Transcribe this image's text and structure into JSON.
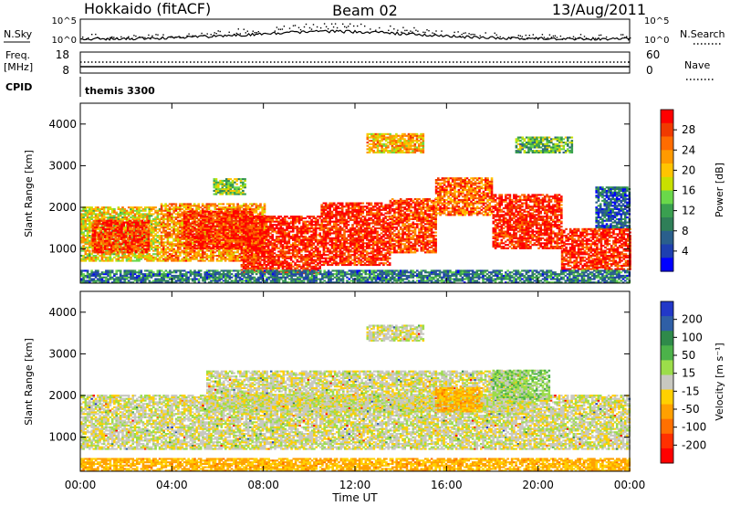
{
  "header": {
    "title_left": "Hokkaido (fitACF)",
    "title_center": "Beam 02",
    "title_right": "13/Aug/2011"
  },
  "top_panels": {
    "nsky_label": "N.Sky",
    "nsearch_label": "N.Search",
    "nsky_ticks": [
      "10^5",
      "10^0"
    ],
    "nsearch_ticks": [
      "10^5",
      "10^0"
    ],
    "freq_label_1": "Freq.",
    "freq_label_2": "[MHz]",
    "freq_ticks": [
      "18",
      "8"
    ],
    "nave_label": "Nave",
    "nave_ticks": [
      "60",
      "0"
    ],
    "cpid_label": "CPID",
    "cpid_value": "themis 3300"
  },
  "power_colorbar": {
    "title": "Power [dB]",
    "ticks": [
      "28",
      "24",
      "20",
      "16",
      "12",
      "8",
      "4"
    ],
    "colors": [
      "#ff0000",
      "#f03a00",
      "#ff6c00",
      "#ff9a00",
      "#ffc400",
      "#c8e000",
      "#6ad84a",
      "#3aa050",
      "#2f7f58",
      "#2a5f8c",
      "#1e3fb0",
      "#0000ff"
    ]
  },
  "velocity_colorbar": {
    "title": "Velocity [m s⁻¹]",
    "ticks": [
      "200",
      "100",
      "50",
      "15",
      "-15",
      "-50",
      "-100",
      "-200"
    ],
    "colors": [
      "#2238c8",
      "#2f5fa6",
      "#2f8a4a",
      "#4cb24a",
      "#9cdd4a",
      "#c8c8c0",
      "#ffd000",
      "#ffa000",
      "#ff7000",
      "#ff3000",
      "#ff0000"
    ]
  },
  "axes": {
    "y_label": "Slant Range [km]",
    "y_ticks": [
      "4000",
      "3000",
      "2000",
      "1000"
    ],
    "x_label": "Time UT",
    "x_ticks": [
      "00:00",
      "04:00",
      "08:00",
      "12:00",
      "16:00",
      "20:00",
      "00:00"
    ]
  },
  "chart_data": {
    "type": "heatmap",
    "x_range_hours": [
      0,
      24
    ],
    "y_range_km": [
      180,
      4500
    ],
    "panels": [
      {
        "name": "Power",
        "units": "dB",
        "color_range": [
          0,
          30
        ],
        "regions": [
          {
            "t0": 0.0,
            "t1": 3.5,
            "r0": 700,
            "r1": 2000,
            "level": 18
          },
          {
            "t0": 0.5,
            "t1": 3.0,
            "r0": 900,
            "r1": 1700,
            "level": 27
          },
          {
            "t0": 3.5,
            "t1": 8.0,
            "r0": 700,
            "r1": 2100,
            "level": 22
          },
          {
            "t0": 4.5,
            "t1": 7.5,
            "r0": 1000,
            "r1": 1900,
            "level": 28
          },
          {
            "t0": 7.0,
            "t1": 10.5,
            "r0": 400,
            "r1": 1800,
            "level": 28
          },
          {
            "t0": 10.5,
            "t1": 13.5,
            "r0": 600,
            "r1": 2100,
            "level": 28
          },
          {
            "t0": 13.5,
            "t1": 15.5,
            "r0": 900,
            "r1": 2200,
            "level": 26
          },
          {
            "t0": 15.5,
            "t1": 18.0,
            "r0": 1800,
            "r1": 2700,
            "level": 24
          },
          {
            "t0": 18.0,
            "t1": 21.0,
            "r0": 1000,
            "r1": 2300,
            "level": 28
          },
          {
            "t0": 21.0,
            "t1": 24.0,
            "r0": 500,
            "r1": 1500,
            "level": 28
          },
          {
            "t0": 12.5,
            "t1": 15.0,
            "r0": 3300,
            "r1": 3750,
            "level": 20
          },
          {
            "t0": 5.8,
            "t1": 7.2,
            "r0": 2300,
            "r1": 2700,
            "level": 14
          },
          {
            "t0": 19.0,
            "t1": 21.5,
            "r0": 3300,
            "r1": 3700,
            "level": 12
          },
          {
            "t0": 0.0,
            "t1": 24.0,
            "r0": 180,
            "r1": 500,
            "level": 8
          },
          {
            "t0": 22.5,
            "t1": 24.0,
            "r0": 1500,
            "r1": 2500,
            "level": 6
          }
        ]
      },
      {
        "name": "Velocity",
        "units": "m s⁻¹",
        "color_range": [
          -200,
          200
        ],
        "regions": [
          {
            "t0": 0.0,
            "t1": 24.0,
            "r0": 700,
            "r1": 2000,
            "level": 0
          },
          {
            "t0": 5.5,
            "t1": 19.5,
            "r0": 1600,
            "r1": 2600,
            "level": 0
          },
          {
            "t0": 12.5,
            "t1": 15.0,
            "r0": 3300,
            "r1": 3700,
            "level": 0
          },
          {
            "t0": 15.5,
            "t1": 17.5,
            "r0": 1600,
            "r1": 2200,
            "level": -60
          },
          {
            "t0": 18.0,
            "t1": 20.5,
            "r0": 1900,
            "r1": 2600,
            "level": 40
          },
          {
            "t0": 0.0,
            "t1": 24.0,
            "r0": 180,
            "r1": 500,
            "level": -60
          }
        ]
      }
    ]
  }
}
